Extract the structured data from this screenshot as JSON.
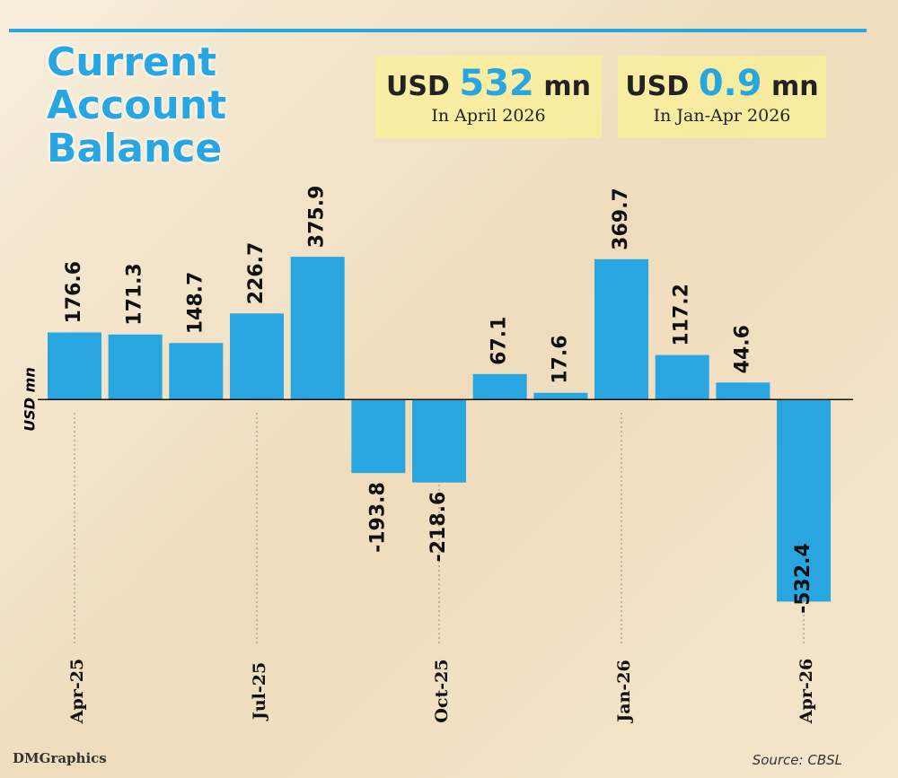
{
  "chart_data": {
    "type": "bar",
    "title": "Current Account Balance",
    "y_label": "USD mn",
    "categories": [
      "Apr-25",
      null,
      null,
      "Jul-25",
      null,
      null,
      "Oct-25",
      null,
      null,
      "Jan-26",
      null,
      null,
      "Apr-26"
    ],
    "values": [
      176.6,
      171.3,
      148.7,
      226.7,
      375.9,
      -193.8,
      -218.6,
      67.1,
      17.6,
      369.7,
      117.2,
      44.6,
      -532.4
    ],
    "color": "#29a6df",
    "ylim": [
      -600,
      400
    ],
    "highlights": [
      {
        "prefix": "USD",
        "value": 532,
        "unit": "mn",
        "note": "In April 2026"
      },
      {
        "prefix": "USD",
        "value": 0.9,
        "unit": "mn",
        "note": "In Jan-Apr 2026"
      }
    ],
    "source": "Source: CBSL",
    "credit": "DMGraphics"
  }
}
